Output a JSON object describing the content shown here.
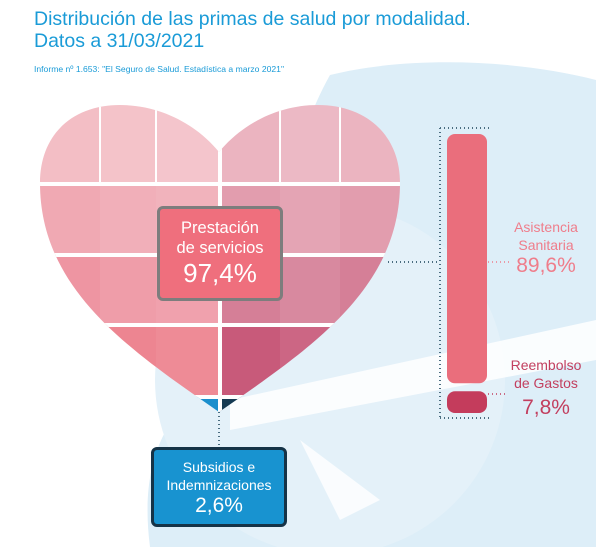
{
  "header": {
    "title_line1": "Distribución de las primas de salud por modalidad.",
    "title_line2": "Datos a 31/03/2021",
    "source": "Informe nº 1.653: \"El Seguro de Salud. Estadística a marzo 2021\""
  },
  "chart_data": {
    "type": "pie",
    "title": "Distribución de las primas de salud por modalidad.",
    "subtitle": "Datos a 31/03/2021",
    "slices": [
      {
        "label_line1": "Prestación",
        "label_line2": "de servicios",
        "value": 97.4,
        "value_text": "97,4%",
        "color": "#ef6f7d",
        "breakdown": [
          {
            "label_line1": "Asistencia",
            "label_line2": "Sanitaria",
            "value": 89.6,
            "value_text": "89,6%",
            "color": "#ea6e7c"
          },
          {
            "label_line1": "Reembolso",
            "label_line2": "de Gastos",
            "value": 7.8,
            "value_text": "7,8%",
            "color": "#c43c5c"
          }
        ]
      },
      {
        "label_line1": "Subsidios e",
        "label_line2": "Indemnizaciones",
        "value": 2.6,
        "value_text": "2,6%",
        "color": "#1893d0"
      }
    ]
  },
  "colors": {
    "title": "#1a9bd7",
    "background_shape": "#ddeef8",
    "heart_light": "#f2b8c0",
    "heart_dark": "#c64f72"
  }
}
